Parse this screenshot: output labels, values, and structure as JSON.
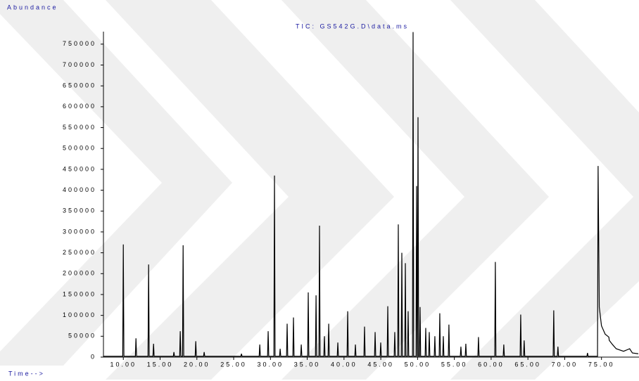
{
  "chart_data": {
    "type": "line",
    "title": "TIC: GS542G.D\\data.ms",
    "y_label": "Abundance",
    "x_label": "Time-->",
    "color": "#000000",
    "xlim": [
      7.3,
      80.1
    ],
    "ylim": [
      0,
      780000
    ],
    "xticks": [
      {
        "value": 10,
        "label": "10.00"
      },
      {
        "value": 15,
        "label": "15.00"
      },
      {
        "value": 20,
        "label": "20.00"
      },
      {
        "value": 25,
        "label": "25.00"
      },
      {
        "value": 30,
        "label": "30.00"
      },
      {
        "value": 35,
        "label": "35.00"
      },
      {
        "value": 40,
        "label": "40.00"
      },
      {
        "value": 45,
        "label": "45.00"
      },
      {
        "value": 50,
        "label": "50.00"
      },
      {
        "value": 55,
        "label": "55.00"
      },
      {
        "value": 60,
        "label": "60.00"
      },
      {
        "value": 65,
        "label": "65.00"
      },
      {
        "value": 70,
        "label": "70.00"
      },
      {
        "value": 75,
        "label": "75.00"
      }
    ],
    "yticks": [
      0,
      50000,
      100000,
      150000,
      200000,
      250000,
      300000,
      350000,
      400000,
      450000,
      500000,
      550000,
      600000,
      650000,
      700000,
      750000
    ],
    "x": [
      7.3,
      9.92,
      10.0,
      10.08,
      11.64,
      11.72,
      11.8,
      13.36,
      13.44,
      13.52,
      14.03,
      14.11,
      14.19,
      16.8,
      16.88,
      16.96,
      17.66,
      17.74,
      17.82,
      18.05,
      18.13,
      18.21,
      19.77,
      19.85,
      19.93,
      20.91,
      20.99,
      21.07,
      25.98,
      26.06,
      26.14,
      28.47,
      28.55,
      28.63,
      29.61,
      29.69,
      29.77,
      30.47,
      30.55,
      30.63,
      31.24,
      31.32,
      31.4,
      32.19,
      32.27,
      32.35,
      33.05,
      33.13,
      33.21,
      34.11,
      34.19,
      34.27,
      35.06,
      35.14,
      35.22,
      36.12,
      36.2,
      36.28,
      36.59,
      36.67,
      36.75,
      37.26,
      37.34,
      37.42,
      37.84,
      37.92,
      38.0,
      39.08,
      39.16,
      39.24,
      40.42,
      40.5,
      40.58,
      41.47,
      41.55,
      41.63,
      42.71,
      42.79,
      42.87,
      44.15,
      44.23,
      44.31,
      44.91,
      44.99,
      45.07,
      45.87,
      45.95,
      46.03,
      46.82,
      46.9,
      46.98,
      47.3,
      47.38,
      47.46,
      47.78,
      47.86,
      47.94,
      48.26,
      48.34,
      48.42,
      48.64,
      48.72,
      48.8,
      49.31,
      49.39,
      49.47,
      49.79,
      49.87,
      49.95,
      49.98,
      50.06,
      50.14,
      50.26,
      50.34,
      50.42,
      51.03,
      51.11,
      51.19,
      51.51,
      51.59,
      51.67,
      52.27,
      52.35,
      52.43,
      52.94,
      53.02,
      53.1,
      53.42,
      53.5,
      53.58,
      54.18,
      54.26,
      54.34,
      55.81,
      55.89,
      55.97,
      56.48,
      56.56,
      56.64,
      58.2,
      58.28,
      58.36,
      60.49,
      60.57,
      60.65,
      61.64,
      61.72,
      61.8,
      63.94,
      64.02,
      64.1,
      64.41,
      64.49,
      64.57,
      68.43,
      68.51,
      68.59,
      69.0,
      69.08,
      69.16,
      73.02,
      73.1,
      73.18,
      74.46,
      74.54,
      74.7,
      75.0,
      75.5,
      76.0,
      76.06,
      76.5,
      77.0,
      78.0,
      78.83,
      79.2,
      80.0
    ],
    "values": [
      2000,
      2000,
      270000,
      2000,
      2000,
      45000,
      2000,
      2000,
      222000,
      2000,
      2000,
      32000,
      2000,
      2000,
      12000,
      2000,
      2000,
      62000,
      2000,
      2000,
      268000,
      2000,
      2000,
      38000,
      2000,
      2000,
      12000,
      2000,
      2000,
      8000,
      2000,
      2000,
      30000,
      2000,
      2000,
      62000,
      2000,
      2000,
      435000,
      2000,
      2000,
      20000,
      2000,
      2000,
      80000,
      2000,
      2000,
      95000,
      2000,
      2000,
      30000,
      2000,
      2000,
      155000,
      2000,
      2000,
      148000,
      2000,
      2000,
      315000,
      2000,
      2000,
      50000,
      2000,
      2000,
      80000,
      2000,
      2000,
      35000,
      2000,
      2000,
      110000,
      2000,
      2000,
      30000,
      2000,
      2000,
      73000,
      2000,
      2000,
      60000,
      2000,
      2000,
      35000,
      2000,
      2000,
      122000,
      2000,
      2000,
      60000,
      2000,
      2000,
      318000,
      2000,
      2000,
      250000,
      2000,
      2000,
      225000,
      2000,
      2000,
      110000,
      2000,
      2000,
      779000,
      2000,
      2000,
      410000,
      2000,
      2000,
      575000,
      2000,
      2000,
      120000,
      2000,
      2000,
      70000,
      2000,
      2000,
      60000,
      2000,
      2000,
      50000,
      2000,
      2000,
      105000,
      2000,
      2000,
      50000,
      2000,
      2000,
      78000,
      2000,
      2000,
      25000,
      2000,
      2000,
      32000,
      2000,
      2000,
      48000,
      2000,
      2000,
      228000,
      2000,
      2000,
      30000,
      2000,
      2000,
      102000,
      2000,
      2000,
      40000,
      2000,
      2000,
      112000,
      2000,
      2000,
      25000,
      2000,
      2000,
      10000,
      2000,
      2000,
      458000,
      120000,
      75000,
      55000,
      48000,
      40000,
      30000,
      20000,
      14000,
      20000,
      10000,
      8000
    ]
  }
}
